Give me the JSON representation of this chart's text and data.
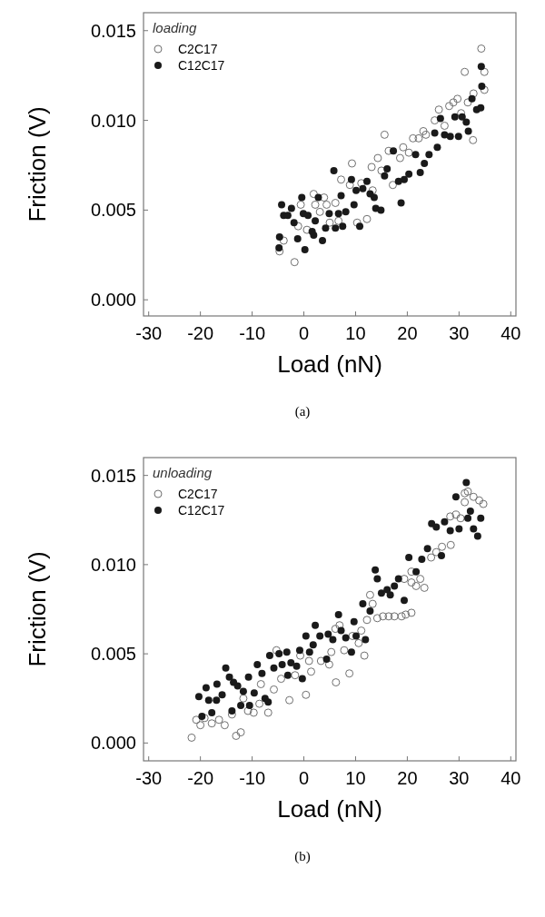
{
  "chart_data": [
    {
      "type": "scatter",
      "xlabel": "Load (nN)",
      "ylabel": "Friction (V)",
      "annotations": [
        "loading",
        "(a)"
      ],
      "xlim": [
        -31,
        41
      ],
      "xticks": [
        -30,
        -20,
        -10,
        0,
        10,
        20,
        30,
        40
      ],
      "ylim": [
        -0.0009,
        0.016
      ],
      "yticks": [
        {
          "value": 0,
          "label": "0.000"
        },
        {
          "value": 0.005,
          "label": "0.005"
        },
        {
          "value": 0.01,
          "label": "0.010"
        },
        {
          "value": 0.015,
          "label": "0.015"
        }
      ],
      "legend": "top left",
      "grid": false,
      "marker": "circle",
      "series": [
        {
          "name": "C2C17",
          "color": "#707070",
          "x": [
            -4.7,
            -3.9,
            -1.8,
            -1.1,
            -0.6,
            0.6,
            1.9,
            2.2,
            3.1,
            3.9,
            4.4,
            6.1,
            5,
            6.7,
            7.2,
            8.9,
            9.3,
            10.3,
            11.1,
            12.2,
            13.1,
            13.3,
            14.3,
            15.6,
            15,
            16.4,
            17.2,
            18.6,
            19.2,
            20.3,
            21.1,
            22.2,
            23.1,
            23.6,
            25.3,
            26.1,
            27.2,
            28.1,
            28.9,
            29.7,
            30.4,
            31.1,
            31.7,
            32.7,
            32.8,
            34.3,
            34.9,
            34.9
          ],
          "values": [
            0.0027,
            0.0033,
            0.0021,
            0.0041,
            0.0053,
            0.0039,
            0.0059,
            0.0053,
            0.0049,
            0.0057,
            0.0053,
            0.0054,
            0.0043,
            0.0044,
            0.0067,
            0.0064,
            0.0076,
            0.0043,
            0.0065,
            0.0045,
            0.0074,
            0.0061,
            0.0079,
            0.0092,
            0.0072,
            0.0083,
            0.0064,
            0.0079,
            0.0085,
            0.0082,
            0.009,
            0.009,
            0.0094,
            0.0092,
            0.01,
            0.0106,
            0.0097,
            0.0108,
            0.011,
            0.0112,
            0.0104,
            0.0127,
            0.011,
            0.0089,
            0.0115,
            0.014,
            0.0127,
            0.0117
          ]
        },
        {
          "name": "C12C17",
          "color": "#1a1a1a",
          "x": [
            -4.8,
            -4.7,
            -4.3,
            -3.9,
            -3.1,
            -2.4,
            -1.9,
            -1.2,
            -0.4,
            -0.1,
            0.2,
            0.8,
            1.6,
            1.9,
            2.2,
            2.8,
            3.6,
            4.2,
            4.9,
            5.8,
            6.1,
            6.7,
            7.2,
            7.5,
            8.1,
            9.2,
            9.7,
            10.1,
            10.8,
            11.4,
            12.2,
            12.8,
            13.6,
            13.9,
            14.9,
            15.6,
            16.1,
            17.3,
            18.3,
            18.8,
            19.4,
            20.3,
            21.6,
            22.5,
            23.3,
            24.2,
            25.3,
            25.8,
            26.4,
            27.2,
            28.3,
            29.2,
            29.9,
            30.6,
            31.4,
            31.8,
            32.5,
            33.4,
            34.2,
            34.3,
            34.4
          ],
          "values": [
            0.0029,
            0.0035,
            0.0053,
            0.0047,
            0.0047,
            0.0051,
            0.0043,
            0.0034,
            0.0057,
            0.0048,
            0.0028,
            0.0047,
            0.0038,
            0.0036,
            0.0044,
            0.0057,
            0.0033,
            0.004,
            0.0048,
            0.0072,
            0.004,
            0.0048,
            0.0058,
            0.0041,
            0.0049,
            0.0067,
            0.0053,
            0.0061,
            0.0041,
            0.0062,
            0.0066,
            0.0059,
            0.0057,
            0.0051,
            0.005,
            0.0069,
            0.0073,
            0.0083,
            0.0066,
            0.0054,
            0.0067,
            0.007,
            0.0081,
            0.0071,
            0.0076,
            0.0081,
            0.0093,
            0.0085,
            0.0101,
            0.0092,
            0.0091,
            0.0102,
            0.0091,
            0.0102,
            0.0099,
            0.0094,
            0.0112,
            0.0106,
            0.0107,
            0.013,
            0.0119
          ]
        }
      ]
    },
    {
      "type": "scatter",
      "xlabel": "Load (nN)",
      "ylabel": "Friction (V)",
      "annotations": [
        "unloading",
        "(b)"
      ],
      "xlim": [
        -31,
        41
      ],
      "xticks": [
        -30,
        -20,
        -10,
        0,
        10,
        20,
        30,
        40
      ],
      "ylim": [
        -0.001,
        0.016
      ],
      "yticks": [
        {
          "value": 0,
          "label": "0.000"
        },
        {
          "value": 0.005,
          "label": "0.005"
        },
        {
          "value": 0.01,
          "label": "0.010"
        },
        {
          "value": 0.015,
          "label": "0.015"
        }
      ],
      "legend": "top left",
      "grid": false,
      "marker": "circle",
      "series": [
        {
          "name": "C2C17",
          "color": "#707070",
          "x": [
            -21.7,
            -20.8,
            -20,
            -19.2,
            -17.8,
            -16.4,
            -15.3,
            -13.9,
            -13.1,
            -12.2,
            -11.7,
            -10.8,
            -9.7,
            -8.6,
            -8.3,
            -6.9,
            -5.8,
            -5.3,
            -4.4,
            -2.8,
            -1.7,
            -0.7,
            0.4,
            1,
            1.4,
            3.3,
            4.9,
            5.3,
            6.1,
            6.2,
            6.9,
            7.8,
            8.8,
            9.4,
            10.6,
            11.1,
            11.7,
            12.2,
            12.8,
            13.3,
            14.2,
            15.3,
            16.4,
            17.5,
            18.9,
            19.7,
            20.8,
            19.4,
            20.8,
            21.7,
            22.5,
            23.3,
            20.8,
            24.6,
            25.6,
            26.7,
            28.4,
            28.3,
            29.4,
            30.3,
            31.1,
            31.1,
            31.7,
            32.8,
            33.9,
            34.7
          ],
          "values": [
            0.0003,
            0.0013,
            0.001,
            0.0014,
            0.0011,
            0.0013,
            0.001,
            0.0016,
            0.0004,
            0.0006,
            0.0025,
            0.0018,
            0.0017,
            0.0022,
            0.0033,
            0.0017,
            0.003,
            0.0052,
            0.0036,
            0.0024,
            0.0038,
            0.0049,
            0.0027,
            0.0046,
            0.004,
            0.0046,
            0.0044,
            0.0051,
            0.0064,
            0.0034,
            0.0066,
            0.0052,
            0.0039,
            0.006,
            0.0056,
            0.0063,
            0.0049,
            0.0069,
            0.0083,
            0.0078,
            0.007,
            0.0071,
            0.0071,
            0.0071,
            0.0071,
            0.0072,
            0.0073,
            0.0092,
            0.009,
            0.0088,
            0.0092,
            0.0087,
            0.0096,
            0.0104,
            0.0107,
            0.011,
            0.0111,
            0.0127,
            0.0128,
            0.0126,
            0.0135,
            0.014,
            0.0141,
            0.0138,
            0.0136,
            0.0134
          ]
        },
        {
          "name": "C12C17",
          "color": "#1a1a1a",
          "x": [
            -20.3,
            -19.7,
            -18.9,
            -18.4,
            -17.8,
            -16.9,
            -16.8,
            -15.8,
            -15.1,
            -14.4,
            -13.9,
            -13.6,
            -12.8,
            -12.2,
            -11.7,
            -10.7,
            -10.5,
            -9.6,
            -9,
            -8.1,
            -7.5,
            -6.9,
            -6.6,
            -5.8,
            -4.8,
            -4.2,
            -3.3,
            -3.1,
            -2.5,
            -1.4,
            -0.8,
            -0.3,
            0.4,
            1.1,
            1.8,
            2.2,
            3.1,
            4.4,
            4.7,
            5.6,
            6.7,
            7.2,
            8.1,
            9.2,
            9.7,
            10.1,
            11.4,
            11.9,
            12.8,
            13.8,
            14.2,
            15,
            16.1,
            16.7,
            17.5,
            18.3,
            19.4,
            20.3,
            21.7,
            22.8,
            23.9,
            24.7,
            25.6,
            26.6,
            27.2,
            28.3,
            29.4,
            30,
            31.4,
            31.7,
            32.2,
            32.8,
            33.6,
            34.2
          ],
          "values": [
            0.0026,
            0.0015,
            0.0031,
            0.0024,
            0.0017,
            0.0024,
            0.0033,
            0.0027,
            0.0042,
            0.0037,
            0.0018,
            0.0034,
            0.0032,
            0.0021,
            0.0029,
            0.0037,
            0.0021,
            0.0028,
            0.0044,
            0.0039,
            0.0025,
            0.0023,
            0.0049,
            0.0042,
            0.005,
            0.0044,
            0.0051,
            0.0038,
            0.0045,
            0.0043,
            0.0052,
            0.0036,
            0.006,
            0.0051,
            0.0055,
            0.0066,
            0.006,
            0.0047,
            0.0061,
            0.0058,
            0.0072,
            0.0063,
            0.0059,
            0.0051,
            0.0068,
            0.006,
            0.0078,
            0.0058,
            0.0074,
            0.0097,
            0.0092,
            0.0084,
            0.0086,
            0.0083,
            0.0088,
            0.0092,
            0.008,
            0.0104,
            0.0096,
            0.0103,
            0.0109,
            0.0123,
            0.0121,
            0.0105,
            0.0124,
            0.0119,
            0.0138,
            0.012,
            0.0146,
            0.0126,
            0.013,
            0.012,
            0.0116,
            0.0126
          ]
        }
      ]
    }
  ]
}
